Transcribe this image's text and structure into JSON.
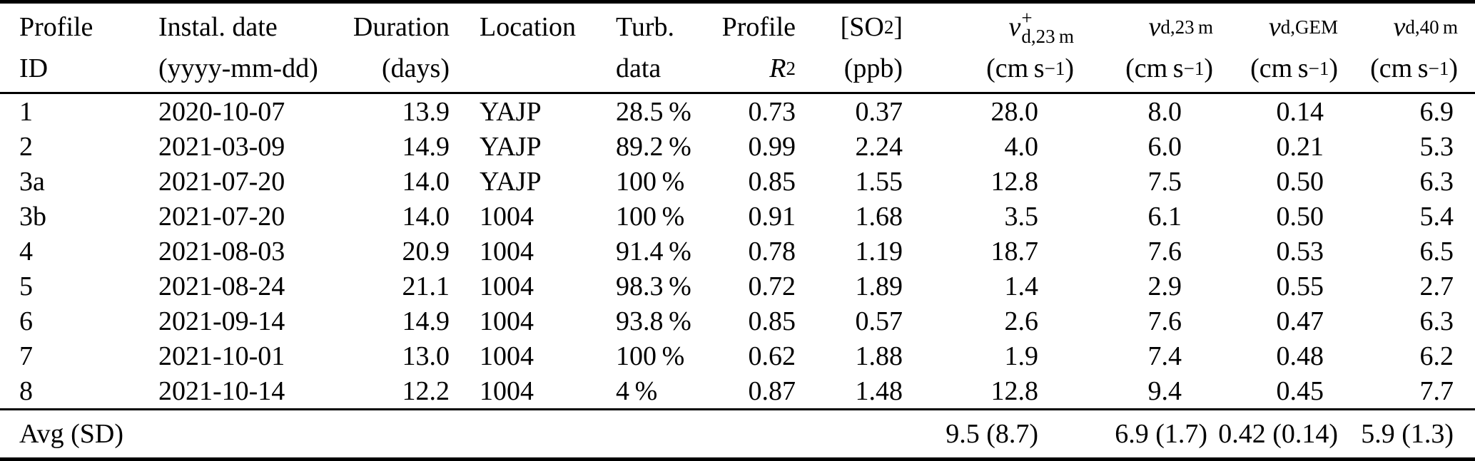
{
  "colors": {
    "background": "#ffffff",
    "text": "#000000",
    "rule": "#000000"
  },
  "table": {
    "header": {
      "profile_id": {
        "line1": "Profile",
        "line2": "ID"
      },
      "instal_date": {
        "line1": "Instal. date",
        "line2": "(yyyy-mm-dd)"
      },
      "duration": {
        "line1": "Duration",
        "line2": "(days)"
      },
      "location": {
        "line1": "Location",
        "line2": ""
      },
      "turb_data": {
        "line1": "Turb.",
        "line2": "data"
      },
      "profile_r2": {
        "line1": "Profile",
        "r_base": "R",
        "r_sup": "2"
      },
      "so2": {
        "bracket_open": "[SO",
        "sub": "2",
        "bracket_close": "]",
        "line2": "(ppb)"
      },
      "vd23p": {
        "base": "v",
        "sup": "+",
        "sub": "d,23 m"
      },
      "vd23": {
        "base": "v",
        "sub": "d,23 m"
      },
      "vdgem": {
        "base": "v",
        "sub": "d,GEM"
      },
      "vd40": {
        "base": "v",
        "sub": "d,40 m"
      },
      "unit_cms": {
        "pre": "(cm s",
        "sup": "−1",
        "post": ")"
      }
    },
    "rows": [
      [
        "1",
        "2020-10-07",
        "13.9",
        "YAJP",
        "28.5 %",
        "0.73",
        "0.37",
        "28.0",
        "8.0",
        "0.14",
        "6.9"
      ],
      [
        "2",
        "2021-03-09",
        "14.9",
        "YAJP",
        "89.2 %",
        "0.99",
        "2.24",
        "4.0",
        "6.0",
        "0.21",
        "5.3"
      ],
      [
        "3a",
        "2021-07-20",
        "14.0",
        "YAJP",
        "100 %",
        "0.85",
        "1.55",
        "12.8",
        "7.5",
        "0.50",
        "6.3"
      ],
      [
        "3b",
        "2021-07-20",
        "14.0",
        "1004",
        "100 %",
        "0.91",
        "1.68",
        "3.5",
        "6.1",
        "0.50",
        "5.4"
      ],
      [
        "4",
        "2021-08-03",
        "20.9",
        "1004",
        "91.4 %",
        "0.78",
        "1.19",
        "18.7",
        "7.6",
        "0.53",
        "6.5"
      ],
      [
        "5",
        "2021-08-24",
        "21.1",
        "1004",
        "98.3 %",
        "0.72",
        "1.89",
        "1.4",
        "2.9",
        "0.55",
        "2.7"
      ],
      [
        "6",
        "2021-09-14",
        "14.9",
        "1004",
        "93.8 %",
        "0.85",
        "0.57",
        "2.6",
        "7.6",
        "0.47",
        "6.3"
      ],
      [
        "7",
        "2021-10-01",
        "13.0",
        "1004",
        "100 %",
        "0.62",
        "1.88",
        "1.9",
        "7.4",
        "0.48",
        "6.2"
      ],
      [
        "8",
        "2021-10-14",
        "12.2",
        "1004",
        "4 %",
        "0.87",
        "1.48",
        "12.8",
        "9.4",
        "0.45",
        "7.7"
      ]
    ],
    "avg_row": {
      "label": "Avg (SD)",
      "vd23p": "9.5 (8.7)",
      "vd23": "6.9 (1.7)",
      "vdgem": "0.42 (0.14)",
      "vd40": "5.9 (1.3)"
    }
  }
}
